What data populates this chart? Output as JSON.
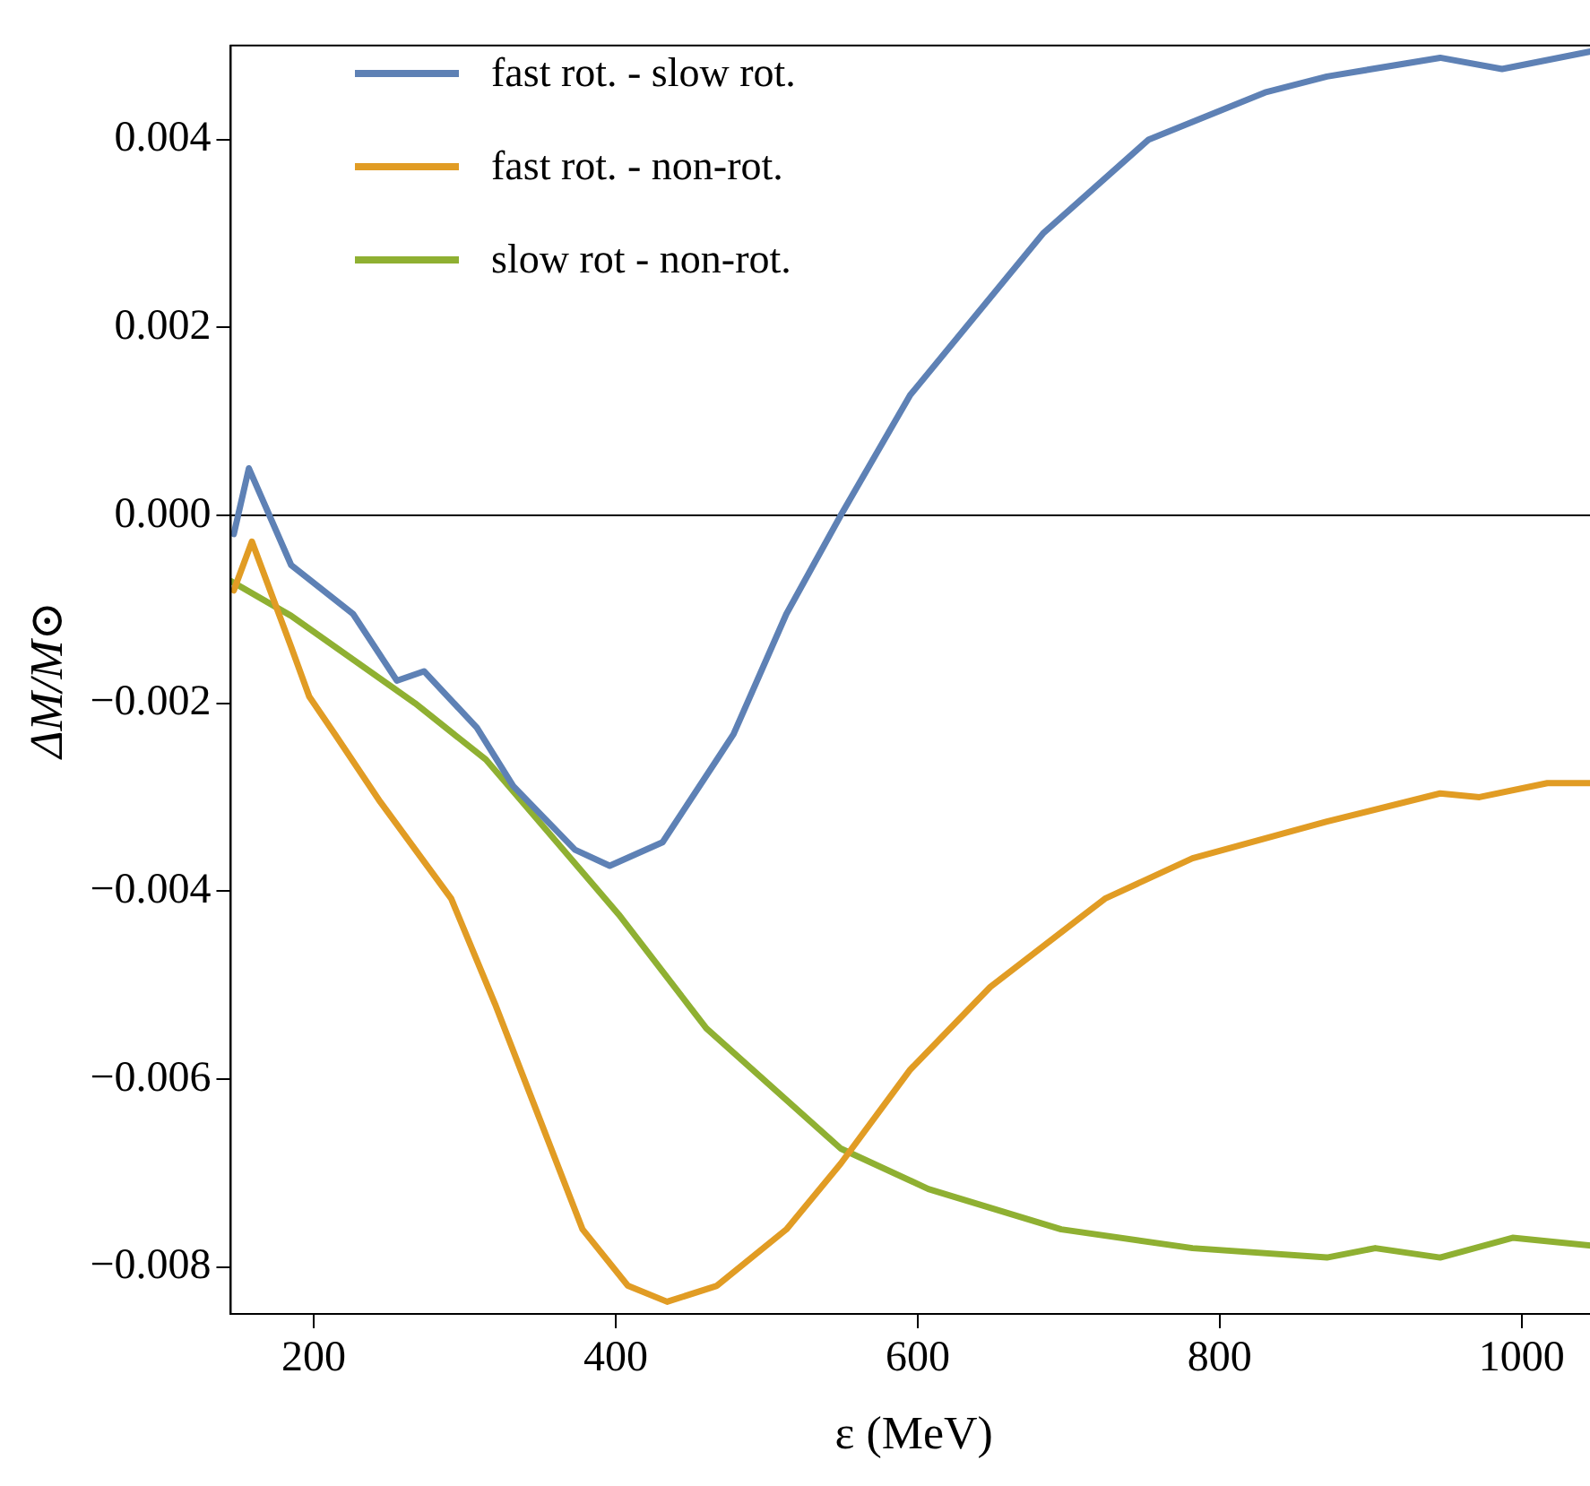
{
  "chart_data": {
    "type": "line",
    "xlabel": "ε (MeV)",
    "ylabel": "ΔM/M⊙",
    "xlim": [
      145,
      1050
    ],
    "xticks": [
      200,
      400,
      600,
      800,
      1000
    ],
    "ylim": [
      -0.0085,
      0.005
    ],
    "yticks": [
      {
        "value": -0.008,
        "label": "−0.008"
      },
      {
        "value": -0.006,
        "label": "−0.006"
      },
      {
        "value": -0.004,
        "label": "−0.004"
      },
      {
        "value": -0.002,
        "label": "−0.002"
      },
      {
        "value": 0,
        "label": "0.000"
      },
      0.002,
      0.004
    ],
    "legend": "top left",
    "grid": false,
    "marker": "none",
    "line_style": "solid",
    "ref_lines": [
      {
        "axis": "y",
        "value": 0,
        "color": "#000000"
      }
    ],
    "series": [
      {
        "name": "fast rot. - slow rot.",
        "color": "#5e81b5",
        "x": [
          147,
          157,
          185,
          226,
          255,
          273,
          308,
          332,
          373,
          396,
          431,
          467,
          478,
          513,
          549,
          595,
          683,
          753,
          830,
          871,
          946,
          987,
          1050
        ],
        "values": [
          -0.0002,
          0.0005,
          -0.00053,
          -0.00105,
          -0.00176,
          -0.00166,
          -0.00226,
          -0.00288,
          -0.00356,
          -0.00373,
          -0.00348,
          -0.0026,
          -0.00233,
          -0.00105,
          0,
          0.00128,
          0.003,
          0.004,
          0.0045,
          0.00467,
          0.00487,
          0.00475,
          0.00495
        ]
      },
      {
        "name": "fast rot. - non-rot.",
        "color": "#e19c24",
        "x": [
          147,
          159,
          185,
          197,
          214,
          244,
          291,
          320,
          349,
          378,
          408,
          434,
          467,
          513,
          549,
          595,
          648,
          724,
          782,
          871,
          946,
          972,
          1017,
          1050
        ],
        "values": [
          -0.0008,
          -0.00028,
          -0.0014,
          -0.00193,
          -0.00233,
          -0.00305,
          -0.00408,
          -0.0052,
          -0.0064,
          -0.0076,
          -0.0082,
          -0.00837,
          -0.0082,
          -0.0076,
          -0.0069,
          -0.0059,
          -0.00502,
          -0.00408,
          -0.00365,
          -0.00326,
          -0.00296,
          -0.003,
          -0.00285,
          -0.00285
        ]
      },
      {
        "name": "slow rot - non-rot.",
        "color": "#8fb032",
        "x": [
          145,
          185,
          267,
          314,
          361,
          402,
          460,
          549,
          607,
          695,
          782,
          871,
          903,
          946,
          994,
          1050
        ],
        "values": [
          -0.0007,
          -0.00107,
          -0.002,
          -0.0026,
          -0.00348,
          -0.00425,
          -0.00546,
          -0.00674,
          -0.00717,
          -0.0076,
          -0.0078,
          -0.0079,
          -0.0078,
          -0.0079,
          -0.00769,
          -0.00778
        ]
      }
    ]
  }
}
